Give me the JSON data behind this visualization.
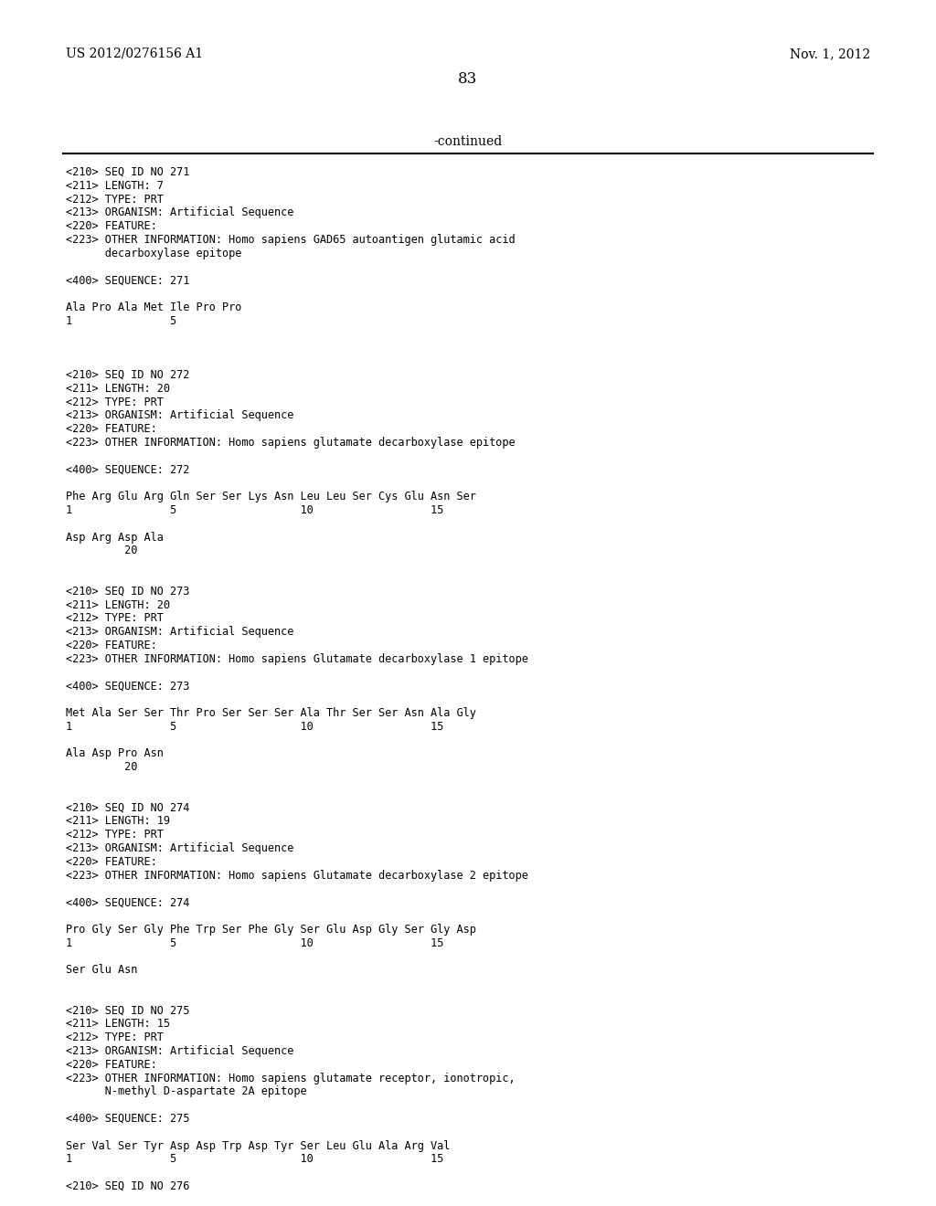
{
  "header_left": "US 2012/0276156 A1",
  "header_right": "Nov. 1, 2012",
  "page_number": "83",
  "continued_text": "-continued",
  "background_color": "#ffffff",
  "text_color": "#000000",
  "lines": [
    "<210> SEQ ID NO 271",
    "<211> LENGTH: 7",
    "<212> TYPE: PRT",
    "<213> ORGANISM: Artificial Sequence",
    "<220> FEATURE:",
    "<223> OTHER INFORMATION: Homo sapiens GAD65 autoantigen glutamic acid",
    "      decarboxylase epitope",
    "",
    "<400> SEQUENCE: 271",
    "",
    "Ala Pro Ala Met Ile Pro Pro",
    "1               5",
    "",
    "",
    "",
    "<210> SEQ ID NO 272",
    "<211> LENGTH: 20",
    "<212> TYPE: PRT",
    "<213> ORGANISM: Artificial Sequence",
    "<220> FEATURE:",
    "<223> OTHER INFORMATION: Homo sapiens glutamate decarboxylase epitope",
    "",
    "<400> SEQUENCE: 272",
    "",
    "Phe Arg Glu Arg Gln Ser Ser Lys Asn Leu Leu Ser Cys Glu Asn Ser",
    "1               5                   10                  15",
    "",
    "Asp Arg Asp Ala",
    "         20",
    "",
    "",
    "<210> SEQ ID NO 273",
    "<211> LENGTH: 20",
    "<212> TYPE: PRT",
    "<213> ORGANISM: Artificial Sequence",
    "<220> FEATURE:",
    "<223> OTHER INFORMATION: Homo sapiens Glutamate decarboxylase 1 epitope",
    "",
    "<400> SEQUENCE: 273",
    "",
    "Met Ala Ser Ser Thr Pro Ser Ser Ser Ala Thr Ser Ser Asn Ala Gly",
    "1               5                   10                  15",
    "",
    "Ala Asp Pro Asn",
    "         20",
    "",
    "",
    "<210> SEQ ID NO 274",
    "<211> LENGTH: 19",
    "<212> TYPE: PRT",
    "<213> ORGANISM: Artificial Sequence",
    "<220> FEATURE:",
    "<223> OTHER INFORMATION: Homo sapiens Glutamate decarboxylase 2 epitope",
    "",
    "<400> SEQUENCE: 274",
    "",
    "Pro Gly Ser Gly Phe Trp Ser Phe Gly Ser Glu Asp Gly Ser Gly Asp",
    "1               5                   10                  15",
    "",
    "Ser Glu Asn",
    "",
    "",
    "<210> SEQ ID NO 275",
    "<211> LENGTH: 15",
    "<212> TYPE: PRT",
    "<213> ORGANISM: Artificial Sequence",
    "<220> FEATURE:",
    "<223> OTHER INFORMATION: Homo sapiens glutamate receptor, ionotropic,",
    "      N-methyl D-aspartate 2A epitope",
    "",
    "<400> SEQUENCE: 275",
    "",
    "Ser Val Ser Tyr Asp Asp Trp Asp Tyr Ser Leu Glu Ala Arg Val",
    "1               5                   10                  15",
    "",
    "<210> SEQ ID NO 276"
  ]
}
